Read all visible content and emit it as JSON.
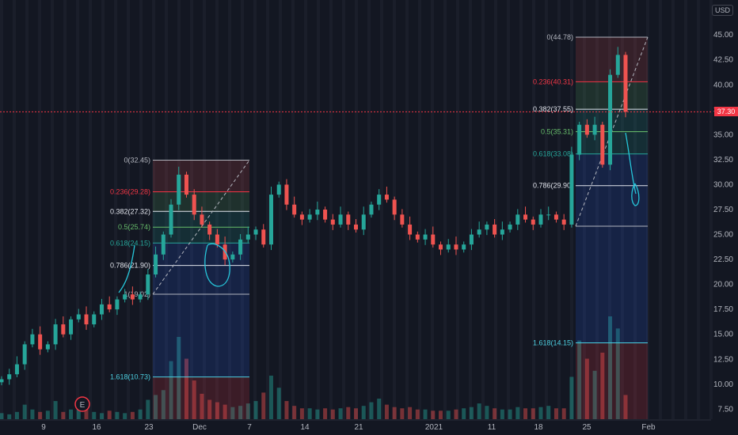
{
  "currency": "USD",
  "last_price": "37.30",
  "earnings_marker": "E",
  "colors": {
    "up": "#26a69a",
    "down": "#ef5350",
    "background": "#131722",
    "fib_line": "#e0e3eb",
    "price_line": "#f23645"
  },
  "chart_data": {
    "type": "candlestick",
    "title": "",
    "ylim": [
      6.5,
      48.5
    ],
    "y_ticks": [
      7.5,
      10,
      12.5,
      15,
      17.5,
      20,
      22.5,
      25,
      27.5,
      30,
      32.5,
      35,
      37.5,
      40,
      42.5,
      45,
      47.5
    ],
    "y_tick_labels": [
      "7.50",
      "10.00",
      "12.50",
      "15.00",
      "17.50",
      "20.00",
      "22.50",
      "25.00",
      "27.50",
      "30.00",
      "32.50",
      "35.00",
      "37.50",
      "40.00",
      "42.50",
      "45.00",
      "47.50"
    ],
    "x_ticks": [
      "9",
      "16",
      "23",
      "Dec",
      "7",
      "14",
      "21",
      "2021",
      "11",
      "18",
      "25",
      "Feb"
    ],
    "close_path": [
      10.5,
      11,
      12,
      14,
      15,
      13.5,
      14,
      16,
      15,
      16.5,
      17,
      16,
      17,
      18,
      17.5,
      18.5,
      19,
      18.5,
      19,
      21,
      23,
      25,
      28,
      31,
      29,
      27,
      26,
      25,
      24,
      22.5,
      23,
      24.5,
      25,
      25.5,
      24,
      29,
      30,
      28,
      27,
      26.5,
      27,
      27.5,
      26.5,
      26,
      27,
      26,
      25.5,
      27,
      28,
      29,
      28.5,
      27,
      26,
      25,
      24.5,
      25,
      24,
      23.5,
      24,
      23.5,
      24,
      25,
      25.5,
      26,
      25,
      25.5,
      26,
      27,
      26.5,
      26,
      27,
      27,
      26.5,
      26,
      33,
      36,
      35,
      36,
      32,
      41,
      43,
      37.3
    ],
    "volume": [
      0.5,
      0.4,
      0.6,
      1.2,
      0.8,
      0.6,
      0.7,
      1.5,
      0.6,
      0.8,
      1.4,
      0.9,
      0.6,
      0.5,
      0.7,
      0.6,
      0.5,
      0.6,
      0.8,
      1.6,
      2.0,
      2.4,
      4.8,
      6.8,
      5.0,
      3.2,
      2.1,
      1.6,
      1.4,
      1.2,
      1.0,
      1.1,
      1.3,
      1.5,
      2.2,
      3.6,
      2.6,
      1.5,
      1.1,
      0.9,
      0.9,
      0.8,
      0.9,
      0.8,
      0.9,
      1.0,
      0.9,
      1.1,
      1.4,
      1.7,
      1.2,
      1.0,
      0.9,
      1.0,
      0.8,
      0.8,
      0.7,
      0.7,
      0.7,
      0.8,
      0.9,
      1.0,
      1.3,
      1.1,
      0.9,
      0.8,
      0.8,
      1.0,
      0.9,
      0.9,
      1.0,
      1.1,
      0.9,
      0.9,
      3.5,
      6.5,
      5.0,
      4.0,
      5.5,
      8.5,
      7.5,
      2.0
    ],
    "fib_retracements": [
      {
        "name": "nov-dec",
        "levels": [
          {
            "ratio": "0",
            "price": 32.45,
            "label": "0(32.45)",
            "color": "#b2b5be"
          },
          {
            "ratio": "0.236",
            "price": 29.28,
            "label": "0.236(29.28)",
            "color": "#f23645"
          },
          {
            "ratio": "0.382",
            "price": 27.32,
            "label": "0.382(27.32)",
            "color": "#e0e3eb"
          },
          {
            "ratio": "0.5",
            "price": 25.74,
            "label": "0.5(25.74)",
            "color": "#66bb6a"
          },
          {
            "ratio": "0.618",
            "price": 24.15,
            "label": "0.618(24.15)",
            "color": "#26a69a"
          },
          {
            "ratio": "0.786",
            "price": 21.9,
            "label": "0.786(21.90)",
            "color": "#e0e3eb"
          },
          {
            "ratio": "1",
            "price": 19.02,
            "label": "1(19.02)",
            "color": "#b2b5be"
          },
          {
            "ratio": "1.618",
            "price": 10.73,
            "label": "1.618(10.73)",
            "color": "#4dd0e1"
          }
        ]
      },
      {
        "name": "jan",
        "levels": [
          {
            "ratio": "0",
            "price": 44.78,
            "label": "0(44.78)",
            "color": "#b2b5be"
          },
          {
            "ratio": "0.236",
            "price": 40.31,
            "label": "0.236(40.31)",
            "color": "#f23645"
          },
          {
            "ratio": "0.382",
            "price": 37.55,
            "label": "0.382(37.55)",
            "color": "#e0e3eb"
          },
          {
            "ratio": "0.5",
            "price": 35.31,
            "label": "0.5(35.31)",
            "color": "#66bb6a"
          },
          {
            "ratio": "0.618",
            "price": 33.08,
            "label": "0.618(33.08)",
            "color": "#26a69a"
          },
          {
            "ratio": "0.786",
            "price": 29.9,
            "label": "0.786(29.90)",
            "color": "#e0e3eb"
          },
          {
            "ratio": "1",
            "price": 25.84,
            "label": "",
            "color": "#b2b5be"
          },
          {
            "ratio": "1.618",
            "price": 14.15,
            "label": "1.618(14.15)",
            "color": "#4dd0e1"
          }
        ]
      }
    ]
  }
}
